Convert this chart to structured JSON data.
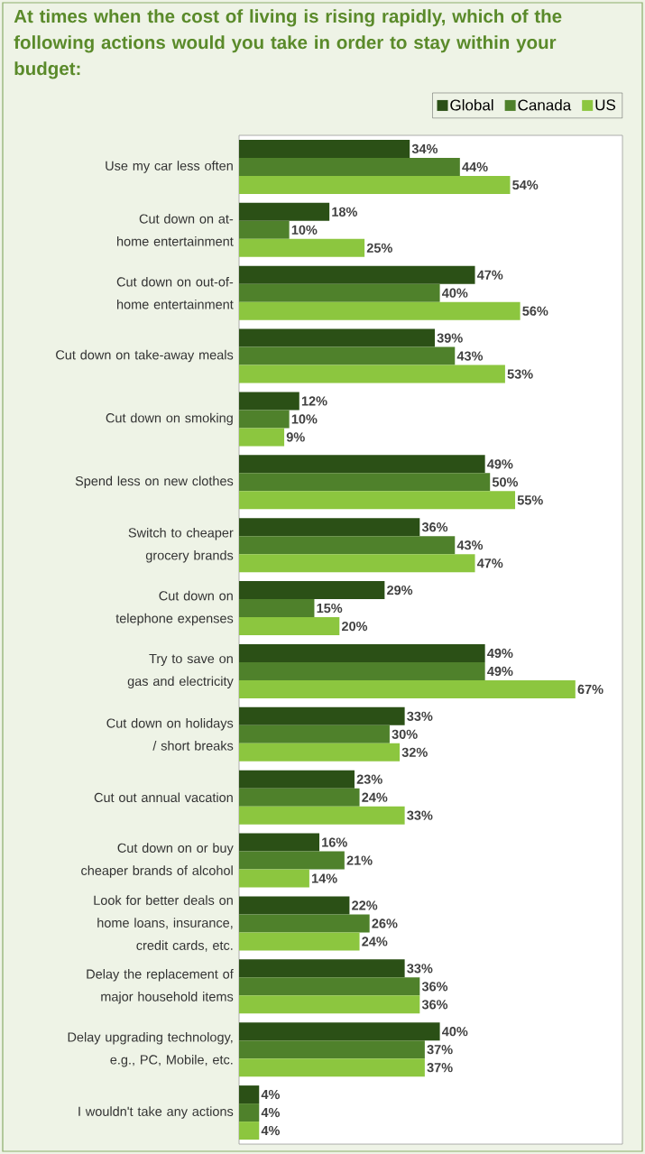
{
  "chart_data": {
    "type": "bar",
    "orientation": "horizontal",
    "legend": "top right",
    "title": "At times when the cost of living is rising rapidly, which of the following actions would you take in order to stay within your budget:",
    "categories": [
      "Use my car less often",
      "Cut down on at-home entertainment",
      "Cut down on out-of-home entertainment",
      "Cut down on take-away meals",
      "Cut down on smoking",
      "Spend less on new clothes",
      "Switch to cheaper grocery brands",
      "Cut down on telephone expenses",
      "Try to save on gas and electricity",
      "Cut down on holidays / short breaks",
      "Cut out annual vacation",
      "Cut down on or buy cheaper brands of alcohol",
      "Look for better deals on home loans, insurance, credit cards, etc.",
      "Delay the replacement of major household items",
      "Delay upgrading technology, e.g., PC, Mobile, etc.",
      "I wouldn't take any actions"
    ],
    "series": [
      {
        "name": "Global",
        "color": "#2b5016",
        "values": [
          34,
          18,
          47,
          39,
          12,
          49,
          36,
          29,
          49,
          33,
          23,
          16,
          22,
          33,
          40,
          4
        ],
        "value_labels": [
          "34%",
          "18%",
          "47%",
          "39%",
          "12%",
          "49%",
          "36%",
          "29%",
          "49%",
          "33%",
          "23%",
          "16%",
          "22%",
          "33%",
          "40%",
          "4%"
        ]
      },
      {
        "name": "Canada",
        "color": "#4f812b",
        "values": [
          44,
          10,
          40,
          43,
          10,
          50,
          43,
          15,
          49,
          30,
          24,
          21,
          26,
          36,
          37,
          4
        ],
        "value_labels": [
          "44%",
          "10%",
          "40%",
          "43%",
          "10%",
          "50%",
          "43%",
          "15%",
          "49%",
          "30%",
          "24%",
          "21%",
          "26%",
          "36%",
          "37%",
          "4%"
        ]
      },
      {
        "name": "US",
        "color": "#8cc63f",
        "values": [
          54,
          25,
          56,
          53,
          9,
          55,
          47,
          20,
          67,
          32,
          33,
          14,
          24,
          36,
          37,
          4
        ],
        "value_labels": [
          "54%",
          "25%",
          "56%",
          "53%",
          "9%",
          "55%",
          "47%",
          "20%",
          "67%",
          "32%",
          "33%",
          "14%",
          "24%",
          "36%",
          "37%",
          "4%"
        ]
      }
    ]
  }
}
